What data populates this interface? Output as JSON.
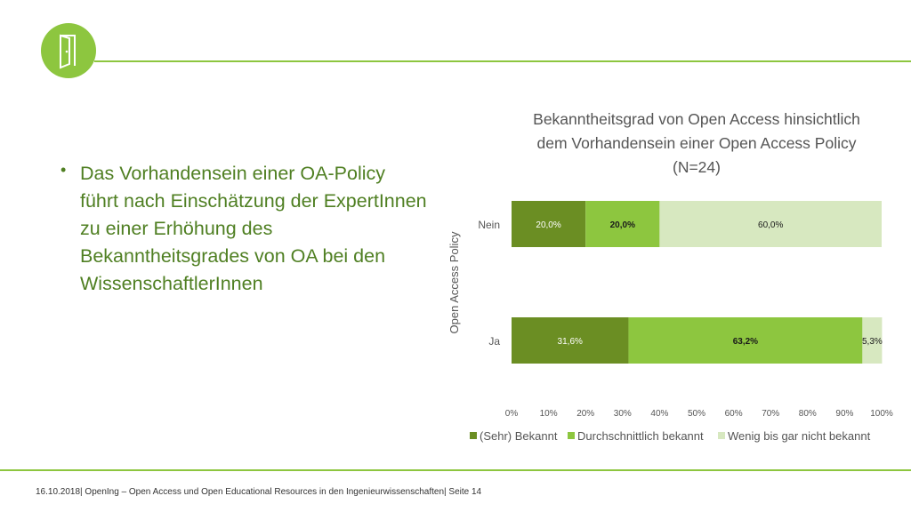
{
  "slide": {
    "bullet": "Das Vorhandensein einer OA-Policy führt nach Einschätzung der ExpertInnen zu einer Erhöhung des Bekanntheitsgrades von OA bei den WissenschaftlerInnen",
    "footer": "16.10.2018| OpenIng – Open Access und Open Educational Resources in den Ingenieurwissenschaften| Seite 14",
    "logo_icon": "door-icon",
    "colors": {
      "accent": "#8dc63f",
      "text_green": "#4f7f22"
    }
  },
  "chart_data": {
    "type": "bar",
    "orientation": "horizontal",
    "stacked": true,
    "title_lines": [
      "Bekanntheitsgrad von Open Access hinsichtlich",
      "dem Vorhandensein einer Open Access Policy",
      "(N=24)"
    ],
    "ylabel": "Open Access Policy",
    "categories": [
      "Nein",
      "Ja"
    ],
    "xlim": [
      0,
      100
    ],
    "xticks": [
      "0%",
      "10%",
      "20%",
      "30%",
      "40%",
      "50%",
      "60%",
      "70%",
      "80%",
      "90%",
      "100%"
    ],
    "legend_position": "bottom",
    "series": [
      {
        "name": "(Sehr) Bekannt",
        "values": [
          20.0,
          31.6
        ],
        "labels": [
          "20,0%",
          "31,6%"
        ],
        "color": "#6b8e23",
        "label_color": "#ffffff",
        "label_bold": false
      },
      {
        "name": "Durchschnittlich bekannt",
        "values": [
          20.0,
          63.2
        ],
        "labels": [
          "20,0%",
          "63,2%"
        ],
        "color": "#8dc63f",
        "label_color": "#1a1a1a",
        "label_bold": true
      },
      {
        "name": "Wenig bis gar nicht bekannt",
        "values": [
          60.0,
          5.3
        ],
        "labels": [
          "60,0%",
          "5,3%"
        ],
        "color": "#d7e8c0",
        "label_color": "#1a1a1a",
        "label_bold": false
      }
    ]
  }
}
